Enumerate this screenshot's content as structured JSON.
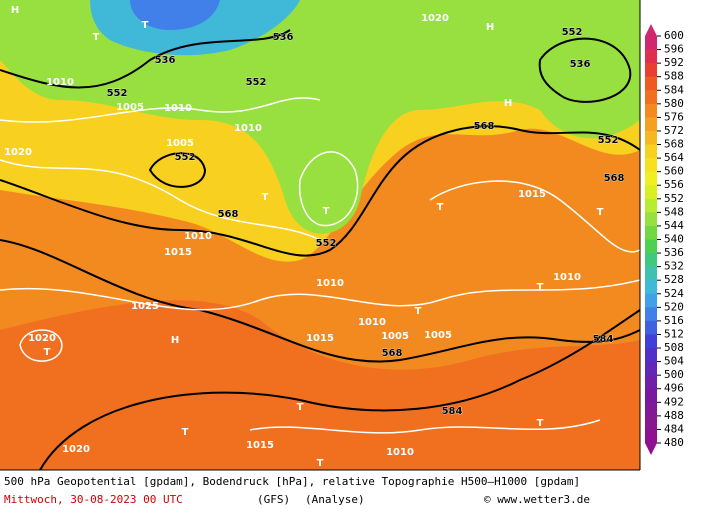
{
  "map": {
    "title": "500 hPa Geopotential [gpdam], Bodendruck [hPa], relative Topographie H500–H1000 [gpdam]",
    "date": "Mittwoch, 30-08-2023   00 UTC",
    "model": "(GFS)",
    "run": "(Analyse)",
    "credit": "© www.wetter3.de",
    "labels": [
      "552",
      "536",
      "536",
      "552",
      "552",
      "536",
      "552",
      "552",
      "568",
      "568",
      "568",
      "552",
      "568",
      "584",
      "584",
      "1020",
      "1010",
      "1005",
      "1010",
      "1010",
      "1005",
      "1010",
      "1015",
      "1025",
      "1020",
      "1020",
      "1015",
      "1010",
      "1005",
      "1005",
      "1010",
      "1010",
      "1015",
      "1020",
      "1010",
      "1015",
      "T",
      "H",
      "T",
      "T",
      "T",
      "H",
      "H",
      "T",
      "T",
      "T",
      "T",
      "T",
      "T",
      "T",
      "T",
      "H",
      "T"
    ]
  },
  "colorbar": {
    "ticks": [
      600,
      596,
      592,
      588,
      584,
      580,
      576,
      572,
      568,
      564,
      560,
      556,
      552,
      548,
      544,
      540,
      536,
      532,
      528,
      524,
      520,
      516,
      512,
      508,
      504,
      500,
      496,
      492,
      488,
      484,
      480
    ],
    "colors": [
      "#d02870",
      "#e03050",
      "#e84030",
      "#ee5a20",
      "#f07020",
      "#f28a20",
      "#f4a020",
      "#f6b820",
      "#f8d020",
      "#f6e020",
      "#f0f020",
      "#d8f020",
      "#b8ec30",
      "#98e040",
      "#70d840",
      "#50d050",
      "#40c880",
      "#40c0b0",
      "#40b8d8",
      "#40a0e8",
      "#4080e8",
      "#4060e0",
      "#4040d8",
      "#5030c8",
      "#6028b8",
      "#7020a8",
      "#7818a0",
      "#801898",
      "#881890",
      "#901090"
    ]
  }
}
